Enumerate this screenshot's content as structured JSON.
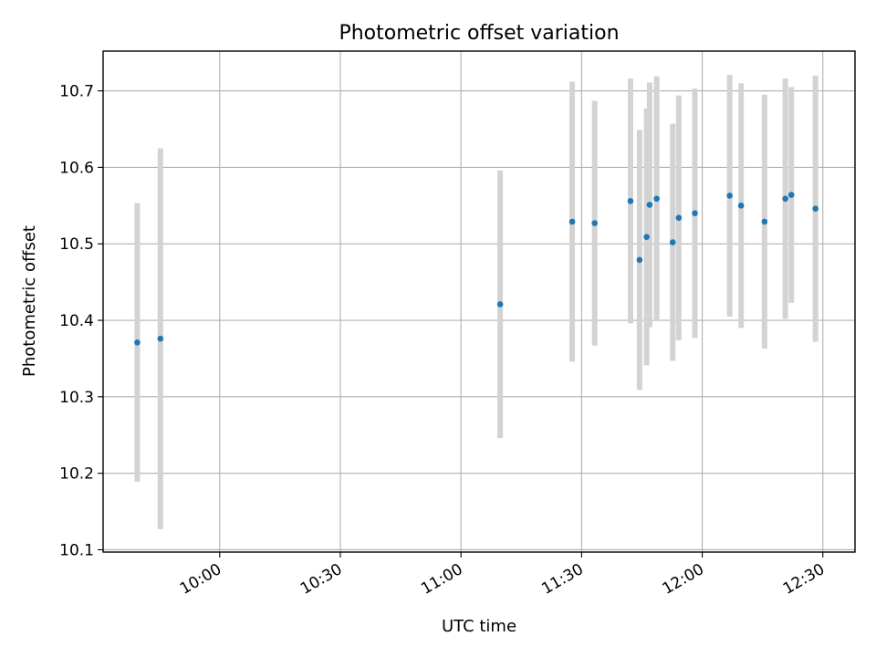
{
  "chart_data": {
    "type": "scatter",
    "title": "Photometric offset variation",
    "xlabel": "UTC time",
    "ylabel": "Photometric offset",
    "grid": true,
    "xlim": [
      "09:31",
      "12:38"
    ],
    "ylim": [
      10.097,
      10.752
    ],
    "x_ticks": [
      "10:00",
      "10:30",
      "11:00",
      "11:30",
      "12:00",
      "12:30"
    ],
    "y_ticks": [
      "10.1",
      "10.2",
      "10.3",
      "10.4",
      "10.5",
      "10.6",
      "10.7"
    ],
    "point_color": "#1f77b4",
    "errorbar_color": "#d3d3d3",
    "points": [
      {
        "x": "09:39:30",
        "y": 10.371,
        "yerr": 0.182
      },
      {
        "x": "09:45:15",
        "y": 10.376,
        "yerr": 0.249
      },
      {
        "x": "11:09:45",
        "y": 10.421,
        "yerr": 0.175
      },
      {
        "x": "11:27:40",
        "y": 10.529,
        "yerr": 0.183
      },
      {
        "x": "11:33:15",
        "y": 10.527,
        "yerr": 0.16
      },
      {
        "x": "11:42:10",
        "y": 10.556,
        "yerr": 0.16
      },
      {
        "x": "11:44:25",
        "y": 10.479,
        "yerr": 0.17
      },
      {
        "x": "11:46:10",
        "y": 10.509,
        "yerr": 0.168
      },
      {
        "x": "11:46:55",
        "y": 10.551,
        "yerr": 0.16
      },
      {
        "x": "11:48:40",
        "y": 10.559,
        "yerr": 0.16
      },
      {
        "x": "11:52:40",
        "y": 10.502,
        "yerr": 0.155
      },
      {
        "x": "11:54:10",
        "y": 10.534,
        "yerr": 0.16
      },
      {
        "x": "11:58:10",
        "y": 10.54,
        "yerr": 0.163
      },
      {
        "x": "12:06:50",
        "y": 10.563,
        "yerr": 0.158
      },
      {
        "x": "12:09:40",
        "y": 10.55,
        "yerr": 0.16
      },
      {
        "x": "12:15:30",
        "y": 10.529,
        "yerr": 0.166
      },
      {
        "x": "12:20:40",
        "y": 10.559,
        "yerr": 0.157
      },
      {
        "x": "12:22:10",
        "y": 10.564,
        "yerr": 0.141
      },
      {
        "x": "12:28:10",
        "y": 10.546,
        "yerr": 0.174
      }
    ]
  }
}
